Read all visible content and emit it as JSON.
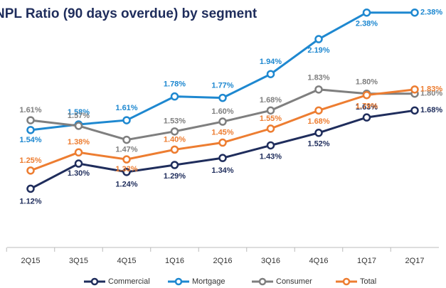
{
  "chart_data": {
    "type": "line",
    "title": "NPL Ratio (90 days overdue) by segment",
    "categories": [
      "2Q15",
      "3Q15",
      "4Q15",
      "1Q16",
      "2Q16",
      "3Q16",
      "4Q16",
      "1Q17",
      "2Q17"
    ],
    "series": [
      {
        "name": "Commercial",
        "color": "#1f2d5c",
        "values": [
          1.12,
          1.3,
          1.24,
          1.29,
          1.34,
          1.43,
          1.52,
          1.63,
          1.68
        ],
        "value_labels": [
          "1.12%",
          "1.30%",
          "1.24%",
          "1.29%",
          "1.34%",
          "1.43%",
          "1.52%",
          "1.63%",
          "1.68%"
        ]
      },
      {
        "name": "Mortgage",
        "color": "#1e88d0",
        "values": [
          1.54,
          1.58,
          1.61,
          1.78,
          1.77,
          1.94,
          2.19,
          2.38,
          2.38
        ],
        "value_labels": [
          "1.54%",
          "1.58%",
          "1.61%",
          "1.78%",
          "1.77%",
          "1.94%",
          "2.19%",
          "2.38%",
          "2.38%"
        ]
      },
      {
        "name": "Consumer",
        "color": "#7f7f7f",
        "values": [
          1.61,
          1.57,
          1.47,
          1.53,
          1.6,
          1.68,
          1.83,
          1.8,
          1.8
        ],
        "value_labels": [
          "1.61%",
          "1.57%",
          "1.47%",
          "1.53%",
          "1.60%",
          "1.68%",
          "1.83%",
          "1.80%",
          "1.80%"
        ]
      },
      {
        "name": "Total",
        "color": "#ed7d31",
        "values": [
          1.25,
          1.38,
          1.33,
          1.4,
          1.45,
          1.55,
          1.68,
          1.79,
          1.83
        ],
        "value_labels": [
          "1.25%",
          "1.38%",
          "1.33%",
          "1.40%",
          "1.45%",
          "1.55%",
          "1.68%",
          "1.79%",
          "1.83%"
        ]
      }
    ],
    "ylim": [
      0.7,
      2.47
    ]
  }
}
